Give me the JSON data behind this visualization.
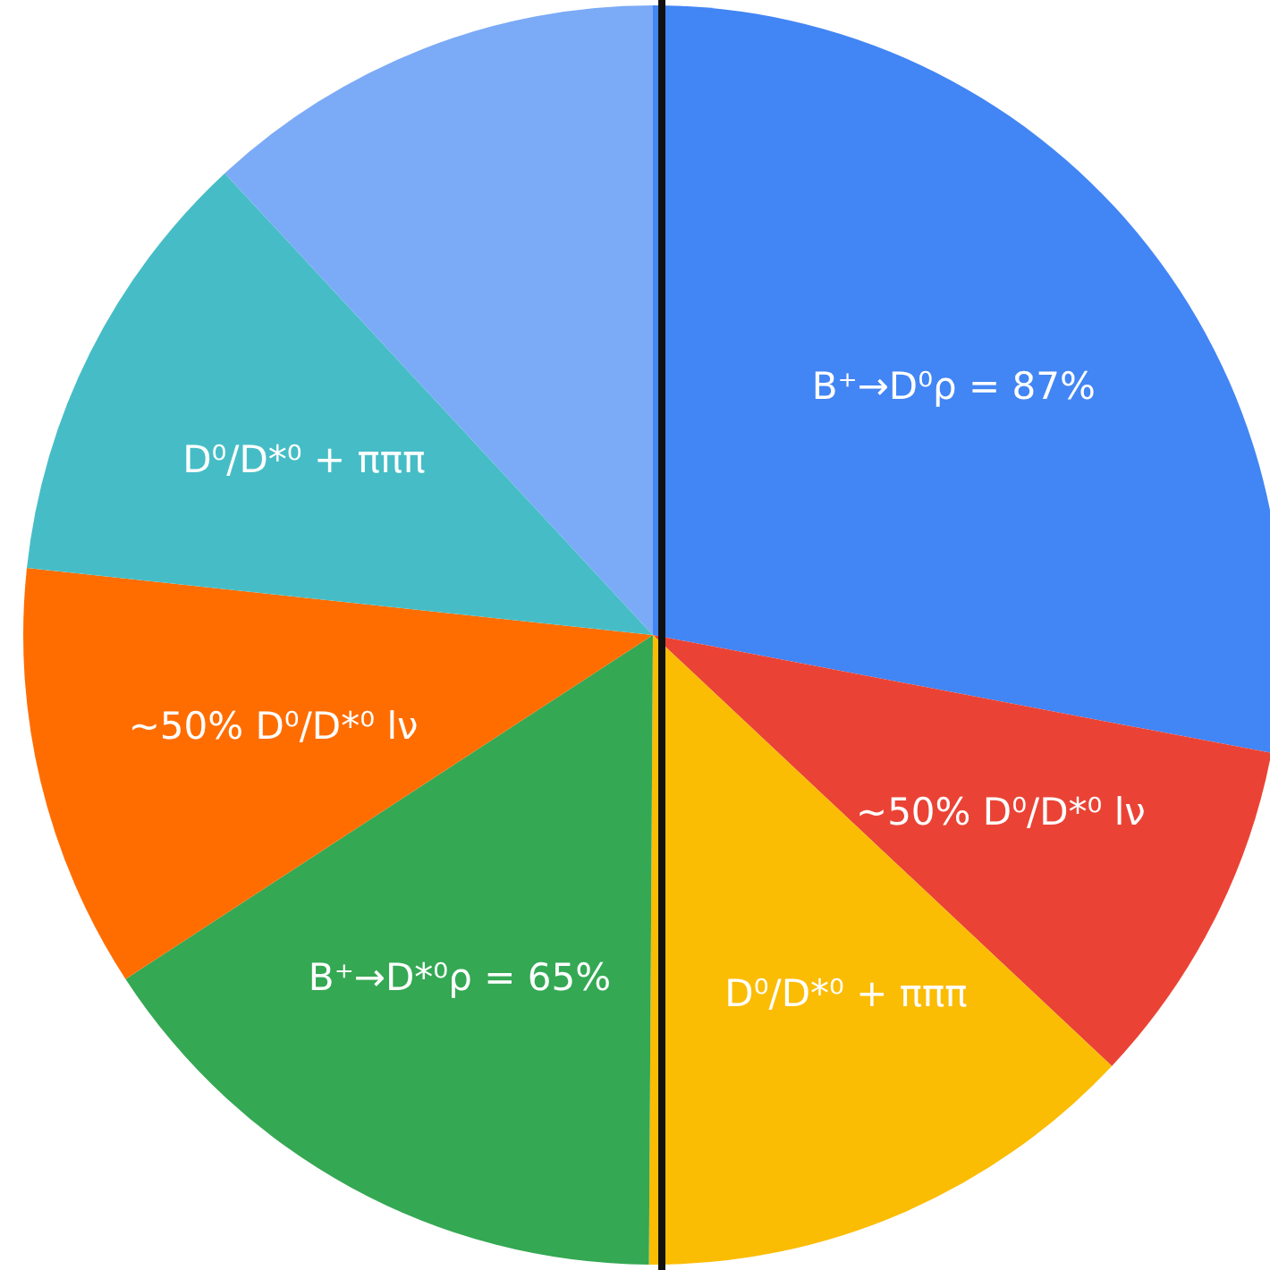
{
  "chart_data": {
    "type": "pie",
    "categories": [
      "B⁺→D⁰ρ = 87%",
      "~50% D⁰/D*⁰ lν",
      "D⁰/D*⁰ + πππ",
      "B⁺→D*⁰ρ = 65%",
      "~50% D⁰/D*⁰ lν",
      "D⁰/D*⁰ + πππ",
      null
    ],
    "values": [
      28.0,
      9.0,
      13.1,
      15.7,
      10.9,
      11.4,
      11.9
    ],
    "colors": [
      "#4285f4",
      "#ea4335",
      "#fbbc04",
      "#34a853",
      "#ff6d01",
      "#46bdc6",
      "#7baaf7"
    ],
    "legend": false
  }
}
